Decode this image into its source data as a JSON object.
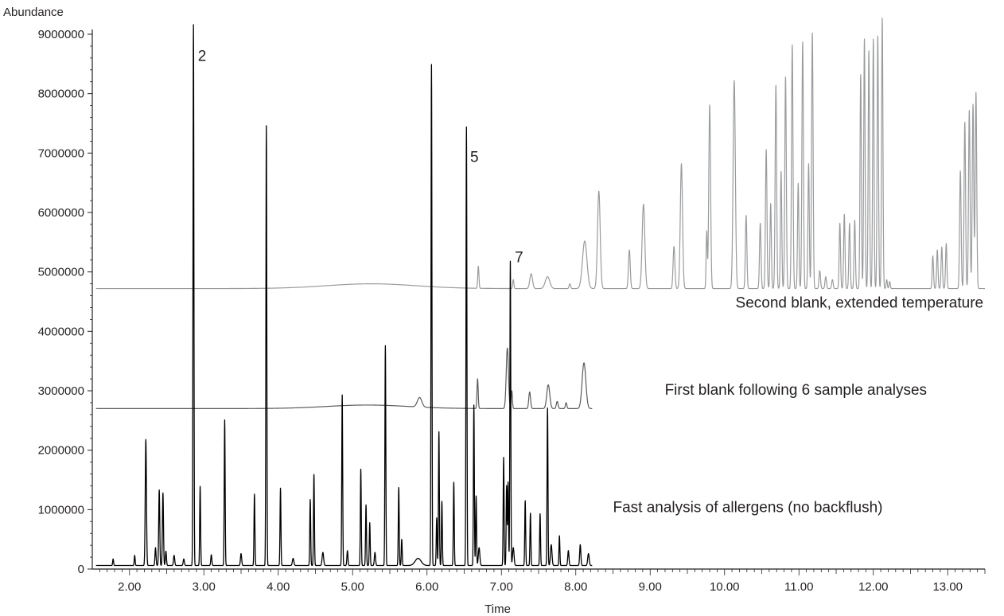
{
  "chart_data": {
    "type": "line",
    "ylabel": "Abundance",
    "xlabel": "Time",
    "xlim": [
      1.5,
      13.5
    ],
    "ylim": [
      0,
      9000000
    ],
    "x_ticks": [
      "2.00",
      "3.00",
      "4.00",
      "5.00",
      "6.00",
      "7.00",
      "8.00",
      "9.00",
      "10.00",
      "11.00",
      "12.00",
      "13.00"
    ],
    "y_ticks": [
      "0",
      "1000000",
      "2000000",
      "3000000",
      "4000000",
      "5000000",
      "6000000",
      "7000000",
      "8000000",
      "9000000"
    ],
    "grid": false,
    "series": [
      {
        "name": "Fast analysis of allergens (no backflush)",
        "color": "#000000",
        "x_range": [
          1.55,
          8.22
        ],
        "baseline": 60000,
        "peaks": [
          [
            1.78,
            110000,
            0.006
          ],
          [
            2.07,
            170000,
            0.006
          ],
          [
            2.22,
            2120000,
            0.008
          ],
          [
            2.35,
            300000,
            0.007
          ],
          [
            2.4,
            1270000,
            0.007
          ],
          [
            2.45,
            1220000,
            0.007
          ],
          [
            2.49,
            240000,
            0.007
          ],
          [
            2.6,
            170000,
            0.008
          ],
          [
            2.73,
            110000,
            0.008
          ],
          [
            2.86,
            9100000,
            0.006
          ],
          [
            2.95,
            1330000,
            0.006
          ],
          [
            3.1,
            180000,
            0.007
          ],
          [
            3.28,
            2450000,
            0.006
          ],
          [
            3.5,
            200000,
            0.008
          ],
          [
            3.68,
            1200000,
            0.006
          ],
          [
            3.84,
            7400000,
            0.006
          ],
          [
            4.03,
            1300000,
            0.006
          ],
          [
            4.2,
            120000,
            0.01
          ],
          [
            4.43,
            1110000,
            0.006
          ],
          [
            4.48,
            1530000,
            0.006
          ],
          [
            4.6,
            220000,
            0.01
          ],
          [
            4.86,
            2870000,
            0.006
          ],
          [
            4.93,
            250000,
            0.007
          ],
          [
            5.11,
            1620000,
            0.006
          ],
          [
            5.18,
            1020000,
            0.006
          ],
          [
            5.23,
            720000,
            0.006
          ],
          [
            5.3,
            220000,
            0.008
          ],
          [
            5.44,
            3700000,
            0.006
          ],
          [
            5.62,
            1310000,
            0.006
          ],
          [
            5.66,
            440000,
            0.006
          ],
          [
            5.88,
            120000,
            0.04
          ],
          [
            6.06,
            8430000,
            0.006
          ],
          [
            6.13,
            800000,
            0.006
          ],
          [
            6.16,
            2250000,
            0.006
          ],
          [
            6.2,
            1080000,
            0.006
          ],
          [
            6.36,
            1400000,
            0.006
          ],
          [
            6.53,
            7380000,
            0.006
          ],
          [
            6.63,
            2700000,
            0.006
          ],
          [
            6.66,
            1170000,
            0.006
          ],
          [
            6.7,
            300000,
            0.01
          ],
          [
            7.03,
            1820000,
            0.006
          ],
          [
            7.07,
            1340000,
            0.006
          ],
          [
            7.09,
            1400000,
            0.006
          ],
          [
            7.12,
            5120000,
            0.006
          ],
          [
            7.16,
            300000,
            0.01
          ],
          [
            7.32,
            1090000,
            0.006
          ],
          [
            7.39,
            880000,
            0.006
          ],
          [
            7.52,
            870000,
            0.006
          ],
          [
            7.62,
            2650000,
            0.006
          ],
          [
            7.67,
            350000,
            0.01
          ],
          [
            7.78,
            500000,
            0.006
          ],
          [
            7.9,
            250000,
            0.008
          ],
          [
            8.06,
            350000,
            0.008
          ],
          [
            8.17,
            200000,
            0.01
          ]
        ]
      },
      {
        "name": "First blank following 6 sample analyses",
        "color": "#5a5b5d",
        "x_range": [
          1.55,
          8.22
        ],
        "baseline": 2700000,
        "hump": [
          5.2,
          60000,
          0.55
        ],
        "peaks": [
          [
            5.9,
            160000,
            0.03
          ],
          [
            6.68,
            500000,
            0.008
          ],
          [
            7.08,
            1020000,
            0.015
          ],
          [
            7.14,
            300000,
            0.008
          ],
          [
            7.38,
            280000,
            0.012
          ],
          [
            7.63,
            400000,
            0.02
          ],
          [
            7.75,
            120000,
            0.012
          ],
          [
            7.87,
            100000,
            0.01
          ],
          [
            8.11,
            770000,
            0.025
          ]
        ]
      },
      {
        "name": "Second blank, extended temperature",
        "color": "#9a9b9d",
        "x_range": [
          1.55,
          13.5
        ],
        "baseline": 4720000,
        "hump": [
          5.25,
          80000,
          0.6
        ],
        "peaks": [
          [
            6.69,
            370000,
            0.008
          ],
          [
            7.16,
            150000,
            0.008
          ],
          [
            7.4,
            250000,
            0.018
          ],
          [
            7.62,
            200000,
            0.03
          ],
          [
            7.92,
            80000,
            0.01
          ],
          [
            8.12,
            800000,
            0.03
          ],
          [
            8.31,
            1640000,
            0.018
          ],
          [
            8.72,
            650000,
            0.012
          ],
          [
            8.91,
            1420000,
            0.018
          ],
          [
            9.32,
            710000,
            0.012
          ],
          [
            9.42,
            2100000,
            0.015
          ],
          [
            9.76,
            960000,
            0.008
          ],
          [
            9.8,
            3090000,
            0.012
          ],
          [
            10.13,
            3500000,
            0.015
          ],
          [
            10.29,
            1230000,
            0.01
          ],
          [
            10.48,
            1100000,
            0.01
          ],
          [
            10.56,
            2340000,
            0.01
          ],
          [
            10.62,
            1430000,
            0.009
          ],
          [
            10.69,
            3420000,
            0.01
          ],
          [
            10.76,
            1970000,
            0.009
          ],
          [
            10.82,
            3560000,
            0.01
          ],
          [
            10.91,
            4100000,
            0.01
          ],
          [
            10.99,
            1770000,
            0.009
          ],
          [
            11.05,
            4150000,
            0.01
          ],
          [
            11.13,
            2100000,
            0.009
          ],
          [
            11.18,
            4300000,
            0.01
          ],
          [
            11.28,
            300000,
            0.01
          ],
          [
            11.36,
            200000,
            0.01
          ],
          [
            11.45,
            150000,
            0.01
          ],
          [
            11.55,
            1100000,
            0.009
          ],
          [
            11.61,
            1250000,
            0.009
          ],
          [
            11.68,
            1100000,
            0.009
          ],
          [
            11.75,
            1150000,
            0.009
          ],
          [
            11.83,
            3600000,
            0.009
          ],
          [
            11.88,
            4200000,
            0.009
          ],
          [
            11.94,
            4000000,
            0.009
          ],
          [
            12.0,
            4200000,
            0.009
          ],
          [
            12.06,
            4250000,
            0.009
          ],
          [
            12.12,
            4550000,
            0.009
          ],
          [
            12.18,
            150000,
            0.008
          ],
          [
            12.22,
            120000,
            0.008
          ],
          [
            12.8,
            550000,
            0.009
          ],
          [
            12.86,
            650000,
            0.009
          ],
          [
            12.92,
            700000,
            0.009
          ],
          [
            12.98,
            760000,
            0.009
          ],
          [
            13.17,
            1980000,
            0.01
          ],
          [
            13.23,
            2800000,
            0.01
          ],
          [
            13.29,
            3000000,
            0.01
          ],
          [
            13.34,
            3100000,
            0.01
          ],
          [
            13.38,
            3300000,
            0.01
          ]
        ]
      }
    ],
    "annotations": [
      {
        "text": "Second blank, extended temperature",
        "x": 13.48,
        "y": 4400000,
        "anchor": "end"
      },
      {
        "text": "First blank following 6 sample analyses",
        "x": 12.72,
        "y": 2930000,
        "anchor": "end"
      },
      {
        "text": "Fast analysis of allergens (no backflush)",
        "x": 8.5,
        "y": 960000,
        "anchor": "start"
      }
    ],
    "peak_labels": [
      {
        "text": "2",
        "x": 2.92,
        "y": 8550000
      },
      {
        "text": "5",
        "x": 6.58,
        "y": 6850000
      },
      {
        "text": "7",
        "x": 7.18,
        "y": 5160000
      }
    ]
  }
}
